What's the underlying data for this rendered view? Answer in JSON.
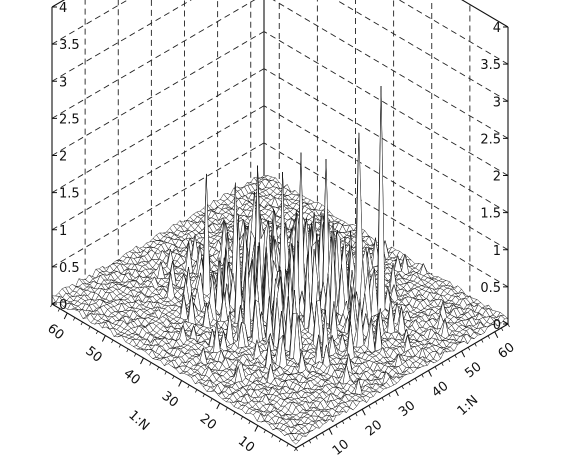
{
  "chart_data": {
    "type": "surface3d",
    "title": "",
    "xlabel": "1:N",
    "ylabel": "1:N",
    "zlabel": "",
    "xlim": [
      0,
      64
    ],
    "ylim": [
      0,
      64
    ],
    "zlim": [
      0,
      4
    ],
    "x_ticks": [
      "10",
      "20",
      "30",
      "40",
      "50",
      "60"
    ],
    "y_ticks": [
      "10",
      "20",
      "30",
      "40",
      "50",
      "60"
    ],
    "z_ticks": [
      "0",
      "0.5",
      "1",
      "1.5",
      "2",
      "2.5",
      "3",
      "3.5",
      "4"
    ],
    "grid": true,
    "grid_style": "dashed",
    "surface": {
      "description_of_values": "baseline near 0 with sparse spiky peaks concentrated in the central region",
      "grid_size": 64,
      "baseline": 0.05,
      "peaks": [
        {
          "x": 18,
          "y": 46,
          "z": 3.1
        },
        {
          "x": 22,
          "y": 44,
          "z": 2.4
        },
        {
          "x": 27,
          "y": 40,
          "z": 2.0
        },
        {
          "x": 30,
          "y": 36,
          "z": 2.1
        },
        {
          "x": 33,
          "y": 34,
          "z": 1.8
        },
        {
          "x": 36,
          "y": 30,
          "z": 1.9
        },
        {
          "x": 40,
          "y": 28,
          "z": 1.6
        },
        {
          "x": 44,
          "y": 24,
          "z": 1.7
        },
        {
          "x": 26,
          "y": 30,
          "z": 1.6
        },
        {
          "x": 34,
          "y": 22,
          "z": 1.5
        },
        {
          "x": 20,
          "y": 34,
          "z": 1.4
        },
        {
          "x": 30,
          "y": 20,
          "z": 1.3
        },
        {
          "x": 42,
          "y": 36,
          "z": 1.2
        }
      ]
    }
  }
}
